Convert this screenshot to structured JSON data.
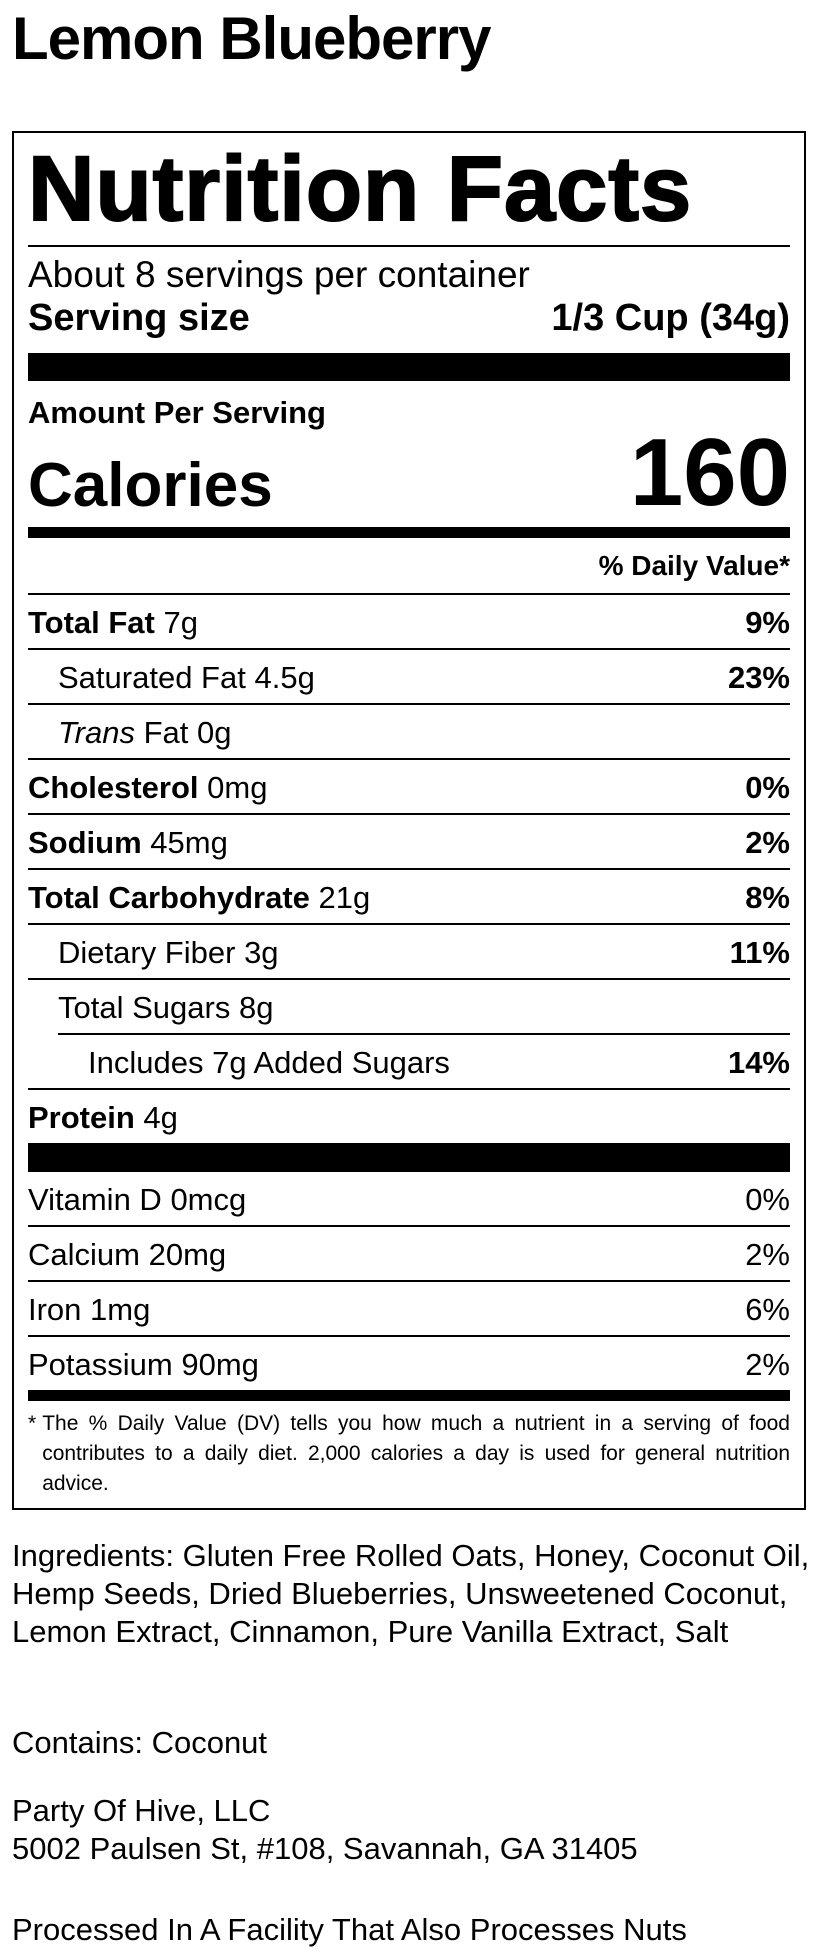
{
  "title": "Lemon Blueberry",
  "label": {
    "heading": "Nutrition Facts",
    "servings_per_container": "About 8 servings per container",
    "serving_size_label": "Serving size",
    "serving_size_value": "1/3 Cup (34g)",
    "amount_per_serving": "Amount Per Serving",
    "calories_label": "Calories",
    "calories_value": "160",
    "dv_header": "% Daily Value*",
    "nutrients": [
      {
        "name": "Total Fat",
        "amount": "7g",
        "dv": "9%",
        "level": "main"
      },
      {
        "name": "Saturated Fat",
        "amount": "4.5g",
        "dv": "23%",
        "level": "sub"
      },
      {
        "name_italic": "Trans",
        "name": "Fat",
        "amount": "0g",
        "level": "sub"
      },
      {
        "name": "Cholesterol",
        "amount": "0mg",
        "dv": "0%",
        "level": "main"
      },
      {
        "name": "Sodium",
        "amount": "45mg",
        "dv": "2%",
        "level": "main"
      },
      {
        "name": "Total Carbohydrate",
        "amount": "21g",
        "dv": "8%",
        "level": "main"
      },
      {
        "name": "Dietary Fiber",
        "amount": "3g",
        "dv": "11%",
        "level": "sub"
      },
      {
        "name": "Total Sugars",
        "amount": "8g",
        "level": "sub"
      },
      {
        "name": "Includes 7g Added Sugars",
        "dv": "14%",
        "level": "subsub"
      },
      {
        "name": "Protein",
        "amount": "4g",
        "level": "main"
      }
    ],
    "vitamins": [
      {
        "name": "Vitamin D",
        "amount": "0mcg",
        "dv": "0%"
      },
      {
        "name": "Calcium",
        "amount": "20mg",
        "dv": "2%"
      },
      {
        "name": "Iron",
        "amount": "1mg",
        "dv": "6%"
      },
      {
        "name": "Potassium",
        "amount": "90mg",
        "dv": "2%"
      }
    ],
    "footnote_marker": "*",
    "footnote": "The % Daily Value (DV) tells you how much a nutrient in a serving of food contributes to a daily diet. 2,000 calories a day is used for general nutrition advice."
  },
  "ingredients": "Ingredients: Gluten Free Rolled Oats, Honey, Coconut Oil, Hemp Seeds, Dried Blueberries, Unsweetened Coconut, Lemon Extract, Cinnamon, Pure Vanilla Extract, Salt",
  "contains": "Contains: Coconut",
  "company": [
    "Party Of Hive, LLC",
    "5002 Paulsen St, #108, Savannah, GA  31405"
  ],
  "facility_note": "Processed In A Facility That Also Processes Nuts"
}
